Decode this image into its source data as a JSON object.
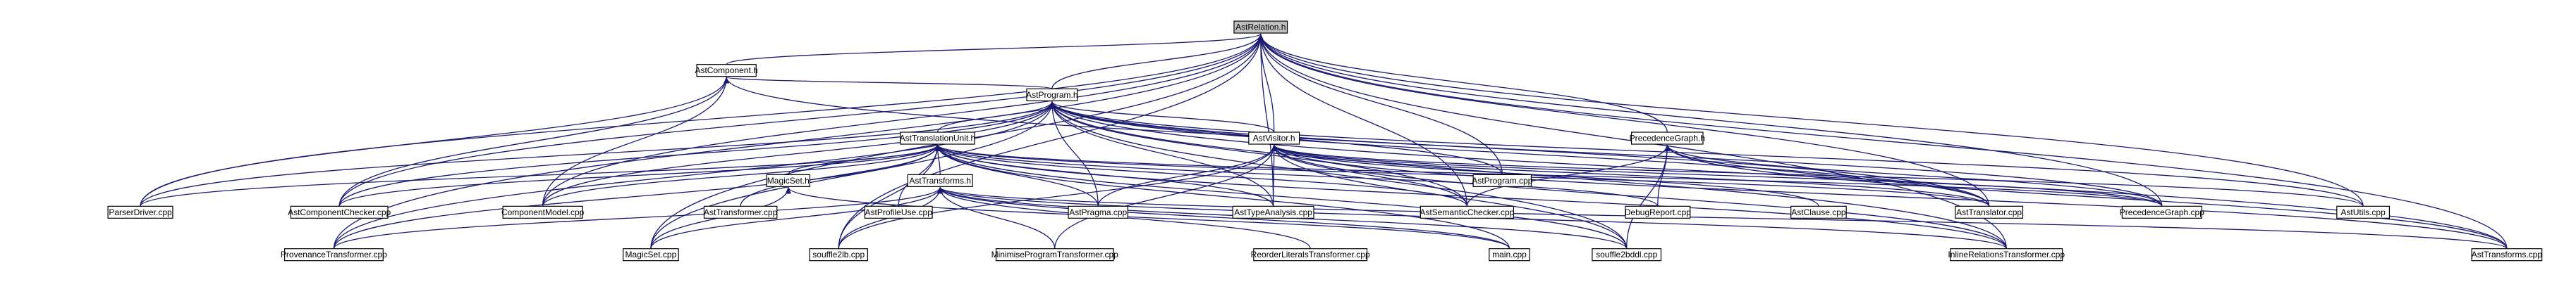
{
  "graph": {
    "title": "AstRelation.h",
    "colors": {
      "edge": "#191970",
      "root_fill": "#bfbfbf",
      "node_fill": "#ffffff",
      "node_stroke": "#000000"
    },
    "nodes": [
      {
        "id": "AstRelation_h",
        "label": "AstRelation.h",
        "root": true
      },
      {
        "id": "AstComponent_h",
        "label": "AstComponent.h"
      },
      {
        "id": "AstProgram_h",
        "label": "AstProgram.h"
      },
      {
        "id": "AstTranslationUnit_h",
        "label": "AstTranslationUnit.h"
      },
      {
        "id": "AstVisitor_h",
        "label": "AstVisitor.h"
      },
      {
        "id": "PrecedenceGraph_h",
        "label": "PrecedenceGraph.h"
      },
      {
        "id": "AstProgram_cpp",
        "label": "AstProgram.cpp"
      },
      {
        "id": "ParserDriver_cpp",
        "label": "ParserDriver.cpp"
      },
      {
        "id": "AstComponentChecker_cpp",
        "label": "AstComponentChecker.cpp"
      },
      {
        "id": "ComponentModel_cpp",
        "label": "ComponentModel.cpp"
      },
      {
        "id": "AstTransformer_cpp",
        "label": "AstTransformer.cpp"
      },
      {
        "id": "AstProfileUse_cpp",
        "label": "AstProfileUse.cpp"
      },
      {
        "id": "MagicSet_h",
        "label": "MagicSet.h"
      },
      {
        "id": "AstPragma_cpp",
        "label": "AstPragma.cpp"
      },
      {
        "id": "AstTypeAnalysis_cpp",
        "label": "AstTypeAnalysis.cpp"
      },
      {
        "id": "AstSemanticChecker_cpp",
        "label": "AstSemanticChecker.cpp"
      },
      {
        "id": "DebugReport_cpp",
        "label": "DebugReport.cpp"
      },
      {
        "id": "AstClause_cpp",
        "label": "AstClause.cpp"
      },
      {
        "id": "AstTranslator_cpp",
        "label": "AstTranslator.cpp"
      },
      {
        "id": "PrecedenceGraph_cpp",
        "label": "PrecedenceGraph.cpp"
      },
      {
        "id": "AstUtils_cpp",
        "label": "AstUtils.cpp"
      },
      {
        "id": "AstTransforms_h",
        "label": "AstTransforms.h"
      },
      {
        "id": "ProvenanceTransformer_cpp",
        "label": "ProvenanceTransformer.cpp"
      },
      {
        "id": "MagicSet_cpp",
        "label": "MagicSet.cpp"
      },
      {
        "id": "souffle2lb_cpp",
        "label": "souffle2lb.cpp"
      },
      {
        "id": "MinimiseProgramTransformer_cpp",
        "label": "MinimiseProgramTransformer.cpp"
      },
      {
        "id": "ReorderLiteralsTransformer_cpp",
        "label": "ReorderLiteralsTransformer.cpp"
      },
      {
        "id": "main_cpp",
        "label": "main.cpp"
      },
      {
        "id": "souffle2bddl_cpp",
        "label": "souffle2bddl.cpp"
      },
      {
        "id": "InlineRelationsTransformer_cpp",
        "label": "InlineRelationsTransformer.cpp"
      },
      {
        "id": "AstTransforms_cpp",
        "label": "AstTransforms.cpp"
      }
    ]
  }
}
